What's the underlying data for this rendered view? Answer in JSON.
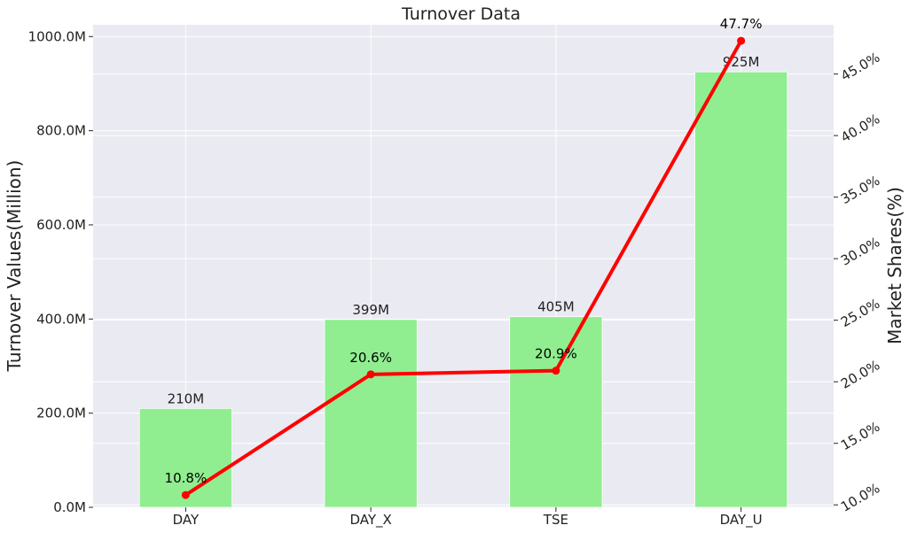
{
  "chart_data": {
    "type": "bar",
    "title": "Turnover Data",
    "categories": [
      "DAY",
      "DAY_X",
      "TSE",
      "DAY_U"
    ],
    "ylabel": "Turnover Values(Million)",
    "y2label": "Market Shares(%)",
    "ylim": [
      0,
      1025
    ],
    "y2lim": [
      9.8,
      49.0
    ],
    "yticks": [
      0,
      200,
      400,
      600,
      800,
      1000
    ],
    "ytick_labels": [
      "0.0M",
      "200.0M",
      "400.0M",
      "600.0M",
      "800.0M",
      "1000.0M"
    ],
    "y2ticks": [
      10,
      15,
      20,
      25,
      30,
      35,
      40,
      45
    ],
    "y2tick_labels": [
      "10.0%",
      "15.0%",
      "20.0%",
      "25.0%",
      "30.0%",
      "35.0%",
      "40.0%",
      "45.0%"
    ],
    "grid": true,
    "series": [
      {
        "kind": "bar",
        "axis": "left",
        "values": [
          210,
          399,
          405,
          925
        ],
        "labels": [
          "210M",
          "399M",
          "405M",
          "925M"
        ],
        "color": "#90ee90"
      },
      {
        "kind": "line",
        "axis": "right",
        "values": [
          10.8,
          20.6,
          20.9,
          47.7
        ],
        "labels": [
          "10.8%",
          "20.6%",
          "20.9%",
          "47.7%"
        ],
        "color": "#ff0000"
      }
    ],
    "background_color": "#eaeaf2",
    "grid_color": "#ffffff"
  }
}
